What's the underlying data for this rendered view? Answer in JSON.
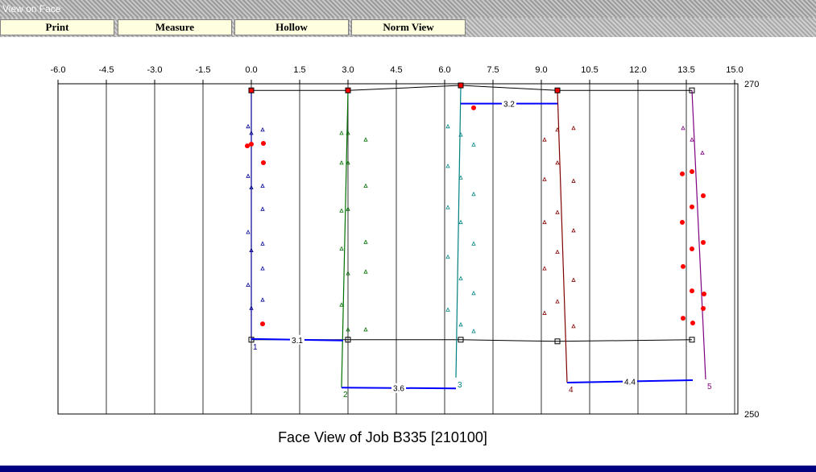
{
  "window": {
    "title": "View on Face"
  },
  "toolbar": {
    "buttons": [
      "Print",
      "Measure",
      "Hollow",
      "Norm View"
    ]
  },
  "chart_data": {
    "type": "line",
    "title": "Face View of Job B335 [210100]",
    "xlim": [
      -6,
      15
    ],
    "ylim": [
      250,
      270
    ],
    "xticks": [
      {
        "value": -6,
        "label": "-6.0"
      },
      {
        "value": -4.5,
        "label": "-4.5"
      },
      {
        "value": -3,
        "label": "-3.0"
      },
      {
        "value": -1.5,
        "label": "-1.5"
      },
      {
        "value": 0,
        "label": "0.0"
      },
      {
        "value": 1.5,
        "label": "1.5"
      },
      {
        "value": 3,
        "label": "3.0"
      },
      {
        "value": 4.5,
        "label": "4.5"
      },
      {
        "value": 6,
        "label": "6.0"
      },
      {
        "value": 7.5,
        "label": "7.5"
      },
      {
        "value": 9,
        "label": "9.0"
      },
      {
        "value": 10.5,
        "label": "10.5"
      },
      {
        "value": 12,
        "label": "12.0"
      },
      {
        "value": 13.5,
        "label": "13.5"
      },
      {
        "value": 15,
        "label": "15.0"
      }
    ],
    "yticks": [
      250,
      270
    ],
    "grid": true,
    "collar_top": {
      "color": "#000000",
      "x": [
        0,
        3,
        6.5,
        9.5,
        13.675
      ],
      "values": [
        269.6,
        269.6,
        269.9,
        269.6,
        269.6
      ]
    },
    "collar_bottom": {
      "color": "#000000",
      "x": [
        0,
        3,
        6.5,
        9.5,
        13.675
      ],
      "values": [
        254.5,
        254.5,
        254.5,
        254.4,
        254.5
      ]
    },
    "series": [
      {
        "name": "1",
        "color": "#000090",
        "x": [
          0,
          0
        ],
        "values": [
          269.6,
          254.5
        ]
      },
      {
        "name": "2",
        "color": "#007000",
        "x": [
          3,
          2.8
        ],
        "values": [
          269.6,
          251.6
        ]
      },
      {
        "name": "3",
        "color": "#008080",
        "x": [
          6.5,
          6.35
        ],
        "values": [
          269.9,
          252.2
        ]
      },
      {
        "name": "4",
        "color": "#800000",
        "x": [
          9.5,
          9.8
        ],
        "values": [
          269.6,
          251.9
        ]
      },
      {
        "name": "5",
        "color": "#800080",
        "x": [
          13.675,
          14.1
        ],
        "values": [
          269.6,
          252.1
        ]
      }
    ],
    "triangles": [
      {
        "color": "#000090",
        "x": [
          -0.1,
          0.0,
          0.35,
          -0.1,
          0.0,
          0.35,
          0.35,
          -0.1,
          0.0,
          0.35,
          -0.1,
          0.0,
          0.35,
          0.35
        ],
        "values": [
          267.4,
          267.0,
          267.2,
          264.4,
          263.7,
          263.8,
          262.4,
          261.0,
          259.9,
          260.3,
          257.8,
          256.4,
          256.9,
          258.8
        ]
      },
      {
        "color": "#007000",
        "x": [
          2.8,
          3.0,
          3.55,
          2.8,
          3.0,
          3.55,
          2.8,
          3.0,
          3.55,
          2.8,
          3.0,
          3.55,
          2.8,
          3.0,
          3.55
        ],
        "values": [
          267.0,
          267.0,
          266.6,
          265.2,
          265.2,
          263.8,
          262.3,
          262.4,
          260.4,
          260.0,
          258.5,
          258.6,
          256.6,
          255.1,
          255.1
        ]
      },
      {
        "color": "#008080",
        "x": [
          6.1,
          6.5,
          6.9,
          6.1,
          6.5,
          6.9,
          6.1,
          6.5,
          6.9,
          6.1,
          6.5,
          6.9,
          6.1,
          6.5,
          6.9
        ],
        "values": [
          267.4,
          266.9,
          266.3,
          265.0,
          264.3,
          263.3,
          262.5,
          261.6,
          260.3,
          259.5,
          258.2,
          257.3,
          256.3,
          255.4,
          255.0
        ]
      },
      {
        "color": "#800000",
        "x": [
          9.1,
          9.5,
          10.0,
          9.1,
          9.5,
          10.0,
          9.1,
          9.5,
          10.0,
          9.1,
          9.5,
          10.0,
          9.1,
          9.5,
          10.0
        ],
        "values": [
          266.6,
          267.2,
          267.3,
          264.2,
          265.2,
          264.1,
          261.6,
          262.2,
          261.1,
          258.8,
          259.8,
          258.1,
          256.1,
          256.8,
          255.3
        ]
      },
      {
        "color": "#800080",
        "x": [
          13.4,
          13.675,
          14.0
        ],
        "values": [
          267.3,
          266.6,
          265.8
        ]
      }
    ],
    "dots": {
      "color": "#ff0000",
      "x": [
        -0.125,
        0,
        0.375,
        0.375,
        0.35,
        6.9,
        13.375,
        13.675,
        14.025,
        13.675,
        13.375,
        14.025,
        13.675,
        13.4,
        13.675,
        14.05,
        14.025,
        13.4,
        13.7
      ],
      "values": [
        266.24,
        266.34,
        266.39,
        265.22,
        255.46,
        268.54,
        264.54,
        264.68,
        263.22,
        262.54,
        261.61,
        260.39,
        260.0,
        258.93,
        257.46,
        257.27,
        256.39,
        255.8,
        255.51
      ]
    },
    "distances": [
      {
        "value": 3.1,
        "x": [
          0,
          2.85
        ],
        "values": [
          254.55,
          254.45
        ]
      },
      {
        "value": 3.6,
        "x": [
          2.8,
          6.35
        ],
        "values": [
          251.6,
          251.55
        ]
      },
      {
        "value": 3.2,
        "x": [
          6.5,
          9.5
        ],
        "values": [
          268.8,
          268.8
        ]
      },
      {
        "value": 4.4,
        "x": [
          9.8,
          13.7
        ],
        "values": [
          251.9,
          252.05
        ]
      }
    ]
  }
}
